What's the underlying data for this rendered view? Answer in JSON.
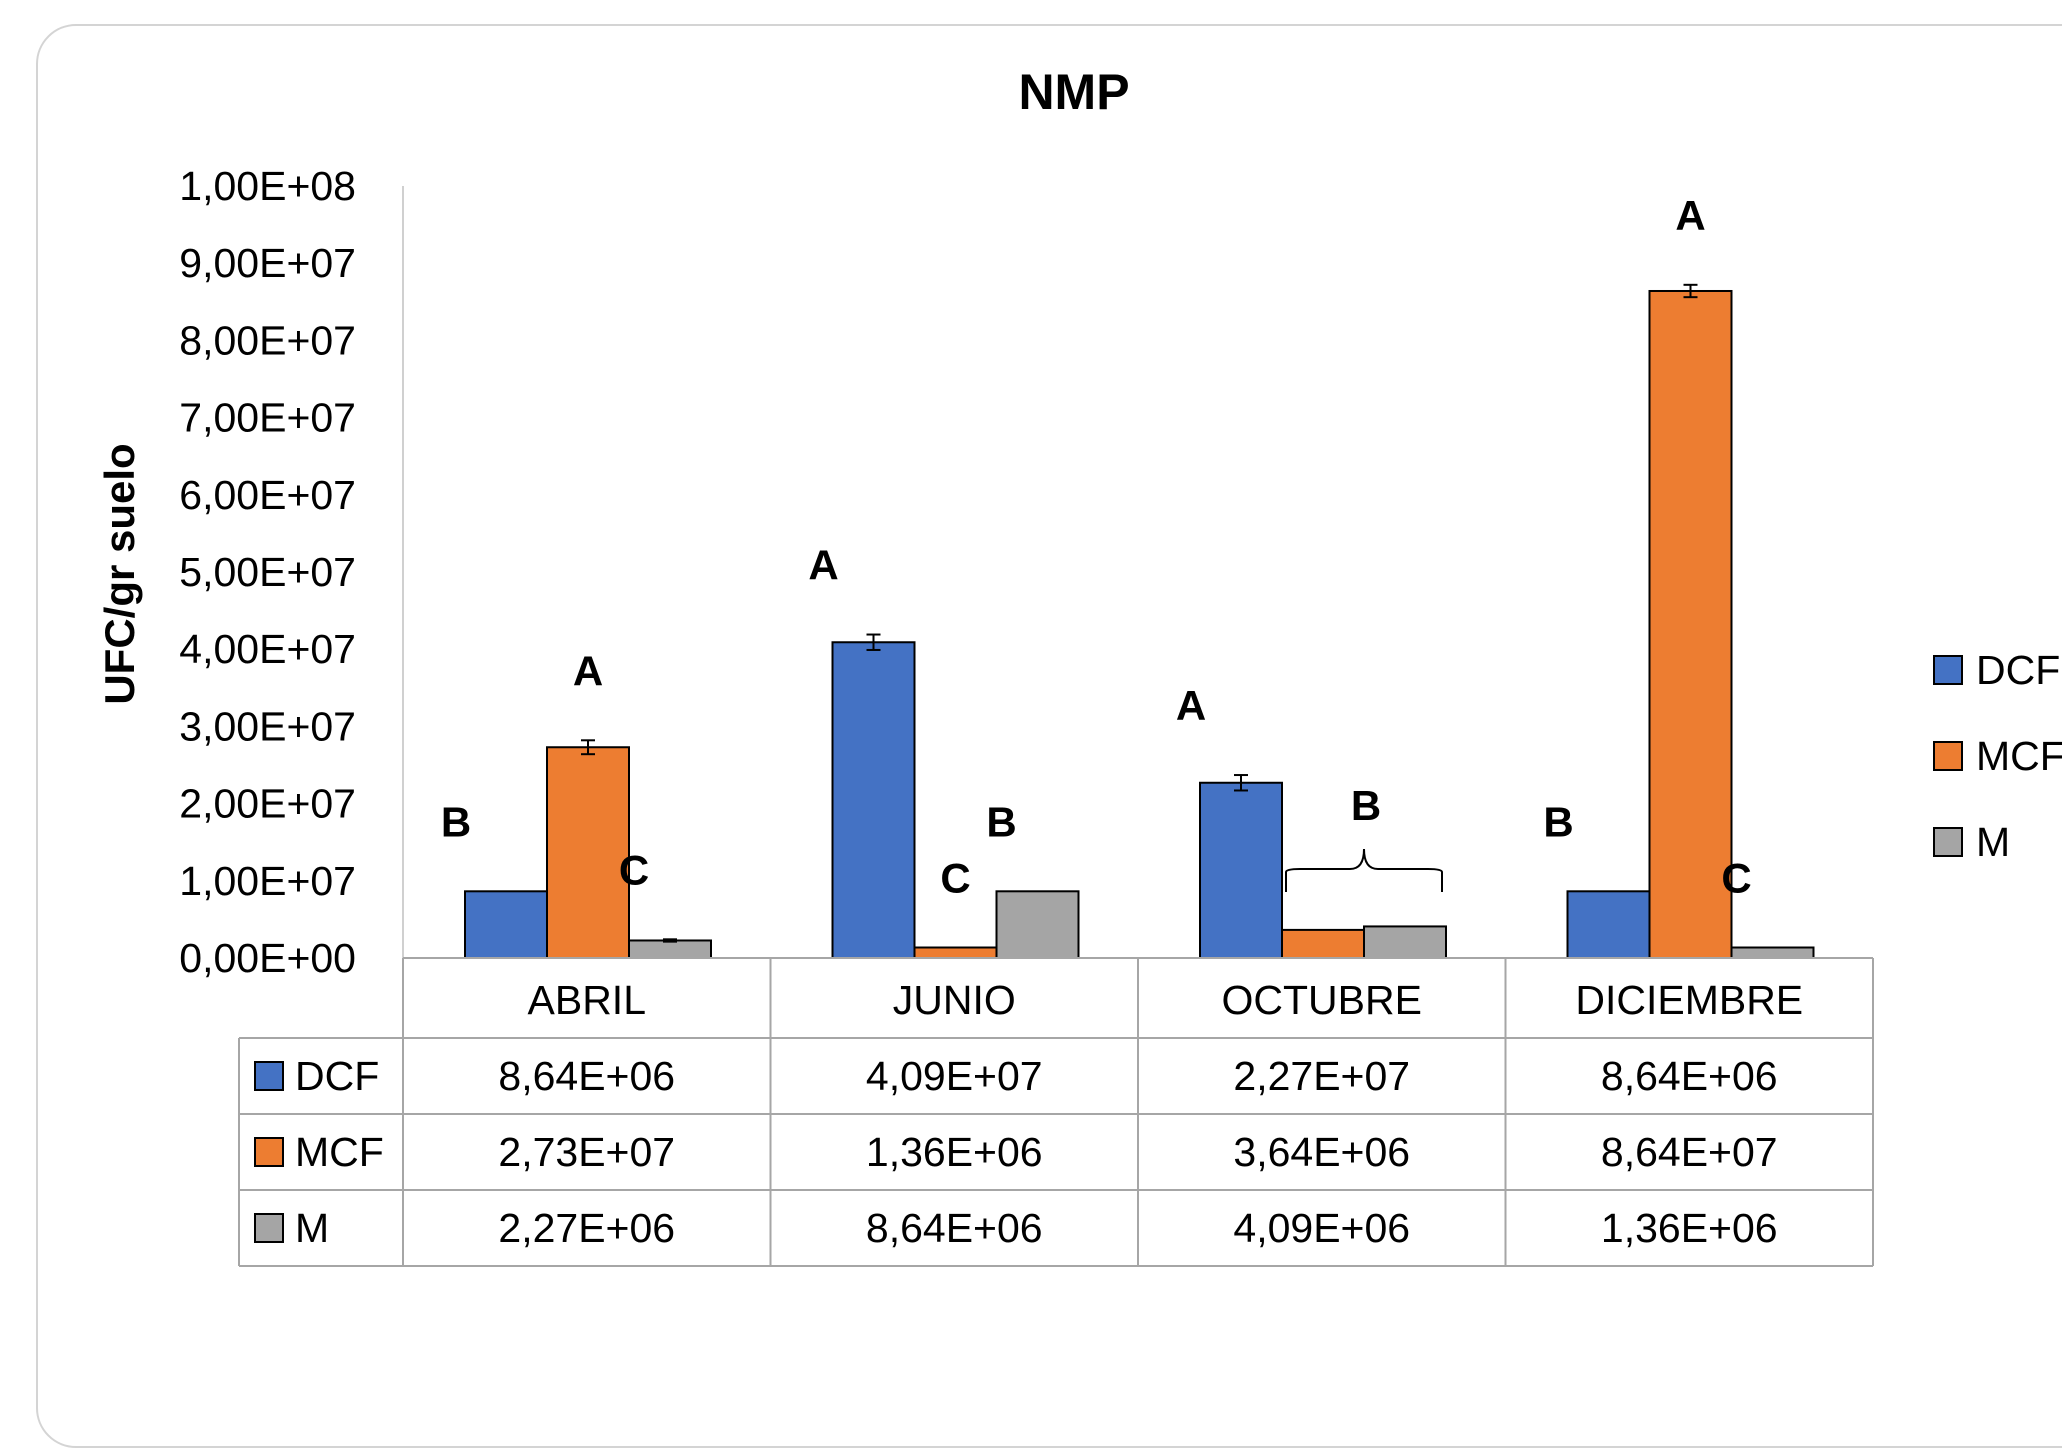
{
  "chart_data": {
    "type": "bar",
    "title": "NMP",
    "ylabel": "UFC/gr suelo",
    "xlabel": "",
    "ylim": [
      0,
      100000000
    ],
    "ytick_step": 10000000,
    "yticks": [
      "0,00E+00",
      "1,00E+07",
      "2,00E+07",
      "3,00E+07",
      "4,00E+07",
      "5,00E+07",
      "6,00E+07",
      "7,00E+07",
      "8,00E+07",
      "9,00E+07",
      "1,00E+08"
    ],
    "categories": [
      "ABRIL",
      "JUNIO",
      "OCTUBRE",
      "DICIEMBRE"
    ],
    "series": [
      {
        "name": "DCF",
        "color": "#4472C4",
        "values": [
          8640000,
          40900000,
          22700000,
          8640000
        ],
        "labels": [
          "8,64E+06",
          "4,09E+07",
          "2,27E+07",
          "8,64E+06"
        ],
        "error": [
          0,
          1000000,
          1000000,
          0
        ],
        "letters": [
          "B",
          "A",
          "A",
          "B"
        ]
      },
      {
        "name": "MCF",
        "color": "#ED7D31",
        "values": [
          27300000,
          1360000,
          3640000,
          86400000
        ],
        "labels": [
          "2,73E+07",
          "1,36E+06",
          "3,64E+06",
          "8,64E+07"
        ],
        "error": [
          900000,
          0,
          0,
          800000
        ],
        "letters": [
          "A",
          "C",
          "",
          "A"
        ]
      },
      {
        "name": "M",
        "color": "#A5A5A5",
        "values": [
          2270000,
          8640000,
          4090000,
          1360000
        ],
        "labels": [
          "2,27E+06",
          "8,64E+06",
          "4,09E+06",
          "1,36E+06"
        ],
        "error": [
          150000,
          0,
          0,
          0
        ],
        "letters": [
          "C",
          "B",
          "",
          "C"
        ]
      }
    ],
    "group_annotation": {
      "category": "OCTUBRE",
      "series": [
        "MCF",
        "M"
      ],
      "letter": "B"
    },
    "legend": "right",
    "data_table": true,
    "grid": false
  }
}
